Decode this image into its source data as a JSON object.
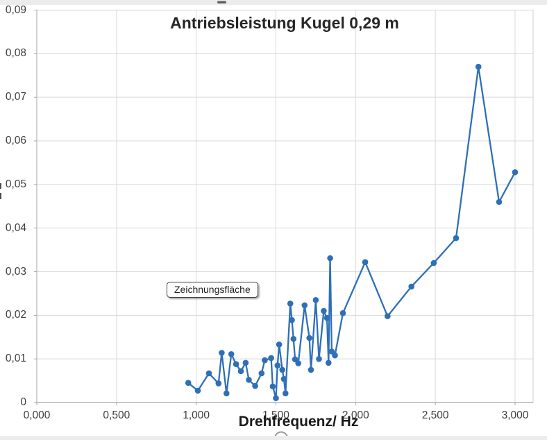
{
  "title": "Antriebsleistung Kugel 0,29 m",
  "tooltip": {
    "text": "Zeichnungsfläche"
  },
  "colors": {
    "series": "#2e6fb7",
    "grid": "#d9d9d9",
    "axis": "#a6a6a6",
    "plot_border": "#cfcfcf",
    "tick_text": "#3d3d3d",
    "handle_stroke": "#9a9a9a"
  },
  "chart_data": {
    "type": "line",
    "title": "Antriebsleistung Kugel 0,29 m",
    "xlabel": "Drehfrequenz/ Hz",
    "ylabel": "",
    "xlim": [
      0,
      3.11
    ],
    "ylim": [
      0,
      0.09
    ],
    "grid": true,
    "legend": false,
    "marker": "circle",
    "x_ticks": {
      "values": [
        0,
        0.5,
        1.0,
        1.5,
        2.0,
        2.5,
        3.0
      ],
      "labels": [
        "0,000",
        "0,500",
        "1,000",
        "1,500",
        "2,000",
        "2,500",
        "3,000"
      ]
    },
    "y_ticks": {
      "values": [
        0,
        0.01,
        0.02,
        0.03,
        0.04,
        0.05,
        0.06,
        0.07,
        0.08,
        0.09
      ],
      "labels": [
        "0",
        "0,01",
        "0,02",
        "0,03",
        "0,04",
        "0,05",
        "0,06",
        "0,07",
        "0,08",
        "0,09"
      ]
    },
    "series": [
      {
        "color": "#2e6fb7",
        "x": [
          0.95,
          1.01,
          1.08,
          1.14,
          1.16,
          1.19,
          1.22,
          1.25,
          1.28,
          1.31,
          1.33,
          1.37,
          1.41,
          1.43,
          1.47,
          1.48,
          1.5,
          1.51,
          1.52,
          1.54,
          1.55,
          1.56,
          1.59,
          1.6,
          1.61,
          1.62,
          1.64,
          1.68,
          1.71,
          1.72,
          1.75,
          1.77,
          1.8,
          1.82,
          1.83,
          1.84,
          1.85,
          1.87,
          1.92,
          2.06,
          2.2,
          2.35,
          2.49,
          2.63,
          2.77,
          2.9,
          3.0
        ],
        "y": [
          0.0045,
          0.0027,
          0.0067,
          0.0044,
          0.0114,
          0.0021,
          0.0111,
          0.0088,
          0.0072,
          0.0091,
          0.0052,
          0.0038,
          0.0067,
          0.0097,
          0.0102,
          0.0037,
          0.001,
          0.0085,
          0.0133,
          0.0075,
          0.0054,
          0.0021,
          0.0227,
          0.0189,
          0.0146,
          0.0099,
          0.009,
          0.0223,
          0.0148,
          0.0075,
          0.0235,
          0.01,
          0.021,
          0.0194,
          0.0091,
          0.0331,
          0.0117,
          0.0108,
          0.0205,
          0.0322,
          0.0198,
          0.0266,
          0.032,
          0.0377,
          0.077,
          0.046,
          0.0528
        ]
      }
    ]
  }
}
